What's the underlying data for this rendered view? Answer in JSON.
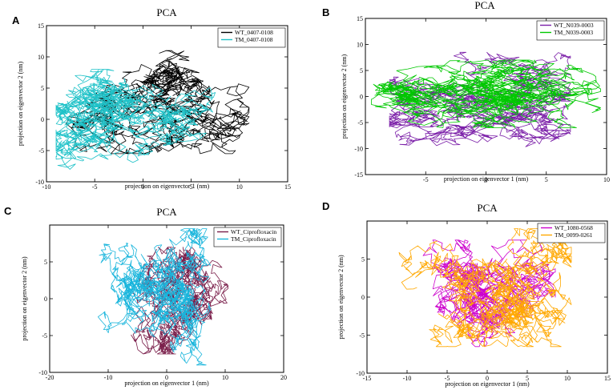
{
  "chart_data": [
    {
      "panel": "A",
      "type": "line",
      "title": "PCA",
      "xlabel": "projection on eigenvector 1 (nm)",
      "ylabel": "projection on eigenvector 2 (nm)",
      "xlim": [
        -10,
        15
      ],
      "ylim": [
        -10,
        15
      ],
      "xticks": [
        -10,
        -5,
        0,
        5,
        10,
        15
      ],
      "yticks": [
        -10,
        -5,
        0,
        5,
        10,
        15
      ],
      "legend_position": "top-right",
      "series": [
        {
          "name": "WT_0407-0108",
          "color": "#000000",
          "seed": 11,
          "n": 1300,
          "sample_points": [
            [
              -5,
              1
            ],
            [
              0,
              5
            ],
            [
              5,
              2
            ],
            [
              8,
              -1
            ],
            [
              2,
              9
            ],
            [
              -3,
              -5
            ]
          ],
          "bounds": [
            -8,
            11,
            -5.5,
            11
          ]
        },
        {
          "name": "TM_0407-0108",
          "color": "#1fc2c8",
          "seed": 12,
          "n": 1500,
          "sample_points": [
            [
              -6,
              0
            ],
            [
              -3,
              5
            ],
            [
              0,
              2
            ],
            [
              3,
              -4
            ],
            [
              5,
              1
            ],
            [
              -8,
              -3
            ]
          ],
          "bounds": [
            -9,
            7.5,
            -8,
            8
          ]
        }
      ]
    },
    {
      "panel": "B",
      "type": "line",
      "title": "PCA",
      "xlabel": "projection on eigenvector 1 (nm)",
      "ylabel": "projection on eigenvector 2 (nm)",
      "xlim": [
        -10,
        10
      ],
      "ylim": [
        -15,
        15
      ],
      "xticks": [
        -5,
        0,
        5,
        10
      ],
      "yticks": [
        -15,
        -10,
        -5,
        0,
        5,
        10,
        15
      ],
      "legend_position": "top-right",
      "series": [
        {
          "name": "WT_N039-0003",
          "color": "#7b1fa8",
          "seed": 21,
          "n": 1300,
          "sample_points": [
            [
              -5,
              3
            ],
            [
              -3,
              -5
            ],
            [
              0,
              7
            ],
            [
              4,
              -6
            ],
            [
              5,
              5
            ],
            [
              -7,
              -4
            ]
          ],
          "bounds": [
            -8,
            7,
            -12,
            8.5
          ]
        },
        {
          "name": "TM_N039-0003",
          "color": "#00c800",
          "seed": 22,
          "n": 1500,
          "sample_points": [
            [
              -6,
              -1
            ],
            [
              -3,
              2
            ],
            [
              0,
              1
            ],
            [
              3,
              3
            ],
            [
              6,
              1
            ],
            [
              9,
              2
            ]
          ],
          "bounds": [
            -9.5,
            9.5,
            -6,
            7
          ]
        }
      ]
    },
    {
      "panel": "C",
      "type": "line",
      "title": "PCA",
      "xlabel": "projection on eigenvector 1 (nm)",
      "ylabel": "projection on eigenvector 2 (nm)",
      "xlim": [
        -20,
        20
      ],
      "ylim": [
        -10,
        10
      ],
      "xticks": [
        -20,
        -10,
        0,
        10,
        20
      ],
      "yticks": [
        -10,
        -5,
        0,
        5
      ],
      "legend_position": "top-right",
      "series": [
        {
          "name": "WT_Ciprofloxacin",
          "color": "#7a1e4a",
          "seed": 31,
          "n": 1200,
          "sample_points": [
            [
              -5,
              2
            ],
            [
              0,
              -4
            ],
            [
              5,
              3
            ],
            [
              9,
              0
            ],
            [
              -3,
              -6
            ],
            [
              3,
              6
            ]
          ],
          "bounds": [
            -10,
            10.5,
            -7.5,
            7
          ]
        },
        {
          "name": "TM_Ciprofloxacin",
          "color": "#19b5dc",
          "seed": 32,
          "n": 1500,
          "sample_points": [
            [
              -8,
              1
            ],
            [
              -3,
              4
            ],
            [
              0,
              0
            ],
            [
              2,
              -5
            ],
            [
              4,
              8
            ],
            [
              7,
              -8
            ]
          ],
          "bounds": [
            -12,
            7.5,
            -9,
            9.5
          ]
        }
      ]
    },
    {
      "panel": "D",
      "type": "line",
      "title": "PCA",
      "xlabel": "projection on eigenvector 1 (nm)",
      "ylabel": "projection on eigenvector 2 (nm)",
      "xlim": [
        -15,
        15
      ],
      "ylim": [
        -10,
        10
      ],
      "xticks": [
        -15,
        -10,
        -5,
        0,
        5,
        10,
        15
      ],
      "yticks": [
        -10,
        -5,
        0,
        5
      ],
      "legend_position": "top-right",
      "series": [
        {
          "name": "WT_1080-0568",
          "color": "#cc00cc",
          "seed": 41,
          "n": 1200,
          "sample_points": [
            [
              -5,
              2
            ],
            [
              0,
              -4
            ],
            [
              5,
              3
            ],
            [
              7,
              0
            ],
            [
              -2,
              -6
            ],
            [
              3,
              6
            ]
          ],
          "bounds": [
            -8,
            8.5,
            -6.5,
            7.5
          ]
        },
        {
          "name": "TM_0099-0261",
          "color": "#ffa800",
          "seed": 42,
          "n": 1500,
          "sample_points": [
            [
              -8,
              1
            ],
            [
              -3,
              4
            ],
            [
              0,
              0
            ],
            [
              3,
              -5
            ],
            [
              6,
              6
            ],
            [
              10,
              6
            ]
          ],
          "bounds": [
            -11,
            10.5,
            -6.5,
            9
          ]
        }
      ]
    }
  ]
}
